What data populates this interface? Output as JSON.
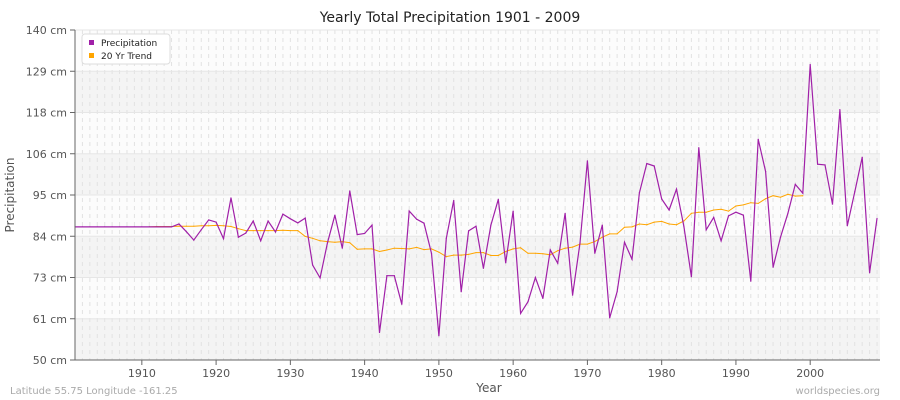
{
  "chart_data": {
    "type": "line",
    "title": "Yearly Total Precipitation 1901 - 2009",
    "xlabel": "Year",
    "ylabel": "Precipitation",
    "xlim": [
      1901,
      2009
    ],
    "ylim": [
      50,
      140
    ],
    "grid": true,
    "legend_position": "top-left",
    "x_ticks": [
      1910,
      1920,
      1930,
      1940,
      1950,
      1960,
      1970,
      1980,
      1990,
      2000
    ],
    "y_ticks": [
      {
        "value": 50,
        "label": "50 cm"
      },
      {
        "value": 61.25,
        "label": "61 cm"
      },
      {
        "value": 72.5,
        "label": "73 cm"
      },
      {
        "value": 83.75,
        "label": "84 cm"
      },
      {
        "value": 95,
        "label": "95 cm"
      },
      {
        "value": 106.25,
        "label": "106 cm"
      },
      {
        "value": 117.5,
        "label": "118 cm"
      },
      {
        "value": 128.75,
        "label": "129 cm"
      },
      {
        "value": 140,
        "label": "140 cm"
      }
    ],
    "series": [
      {
        "name": "Precipitation",
        "color": "#a020a8",
        "start_year": 1901,
        "values": [
          86.3,
          86.3,
          86.3,
          86.3,
          86.3,
          86.3,
          86.3,
          86.3,
          86.3,
          86.3,
          86.3,
          86.3,
          86.3,
          86.3,
          87.1,
          85.0,
          82.7,
          85.5,
          88.2,
          87.6,
          83.1,
          94.2,
          83.5,
          84.6,
          87.9,
          82.5,
          87.9,
          84.9,
          89.8,
          88.5,
          87.4,
          88.7,
          75.9,
          72.4,
          82.0,
          89.5,
          80.5,
          96.1,
          84.2,
          84.5,
          86.8,
          57.5,
          73.0,
          73.0,
          65.2,
          90.6,
          88.4,
          87.3,
          79.1,
          56.6,
          83.2,
          93.5,
          68.6,
          85.2,
          86.5,
          75.0,
          86.8,
          93.8,
          76.5,
          90.6,
          62.7,
          65.9,
          72.5,
          66.8,
          80.0,
          76.4,
          90.0,
          67.7,
          81.9,
          104.3,
          79.1,
          86.8,
          61.5,
          68.6,
          82.1,
          77.5,
          95.6,
          103.6,
          102.9,
          93.9,
          90.9,
          96.6,
          86.4,
          72.7,
          107.9,
          85.5,
          88.9,
          82.5,
          89.3,
          90.3,
          89.5,
          71.5,
          110.2,
          101.4,
          75.3,
          83.5,
          90.0,
          97.9,
          95.5,
          130.6,
          103.4,
          103.2,
          92.5,
          118.3,
          86.6,
          95.9,
          105.3,
          73.8,
          88.6
        ]
      },
      {
        "name": "20 Yr Trend",
        "color": "#ffa500",
        "start_year": 1911,
        "values": [
          86.3,
          86.4,
          86.4,
          86.4,
          86.5,
          86.5,
          86.5,
          86.6,
          86.6,
          86.7,
          86.6,
          86.4,
          85.8,
          85.3,
          85.3,
          85.3,
          85.3,
          85.3,
          85.4,
          85.3,
          85.3,
          83.7,
          83.2,
          82.5,
          82.3,
          82.1,
          82.3,
          82.0,
          80.2,
          80.3,
          80.3,
          79.6,
          80.0,
          80.5,
          80.4,
          80.3,
          80.7,
          80.1,
          80.3,
          79.4,
          78.2,
          78.6,
          78.6,
          78.8,
          79.3,
          79.3,
          78.5,
          78.5,
          79.6,
          80.3,
          80.6,
          79.1,
          79.1,
          79.0,
          78.7,
          79.8,
          80.5,
          80.8,
          81.6,
          81.6,
          82.3,
          83.5,
          84.4,
          84.4,
          86.2,
          86.3,
          87.1,
          86.9,
          87.6,
          87.8,
          87.1,
          86.9,
          87.9,
          90.0,
          90.3,
          90.3,
          90.9,
          91.1,
          90.6,
          92.0,
          92.3,
          92.9,
          92.7,
          94.0,
          94.8,
          94.4,
          95.2,
          94.7,
          94.8
        ]
      }
    ]
  },
  "footer": {
    "location": "Latitude 55.75 Longitude -161.25",
    "source": "worldspecies.org"
  }
}
